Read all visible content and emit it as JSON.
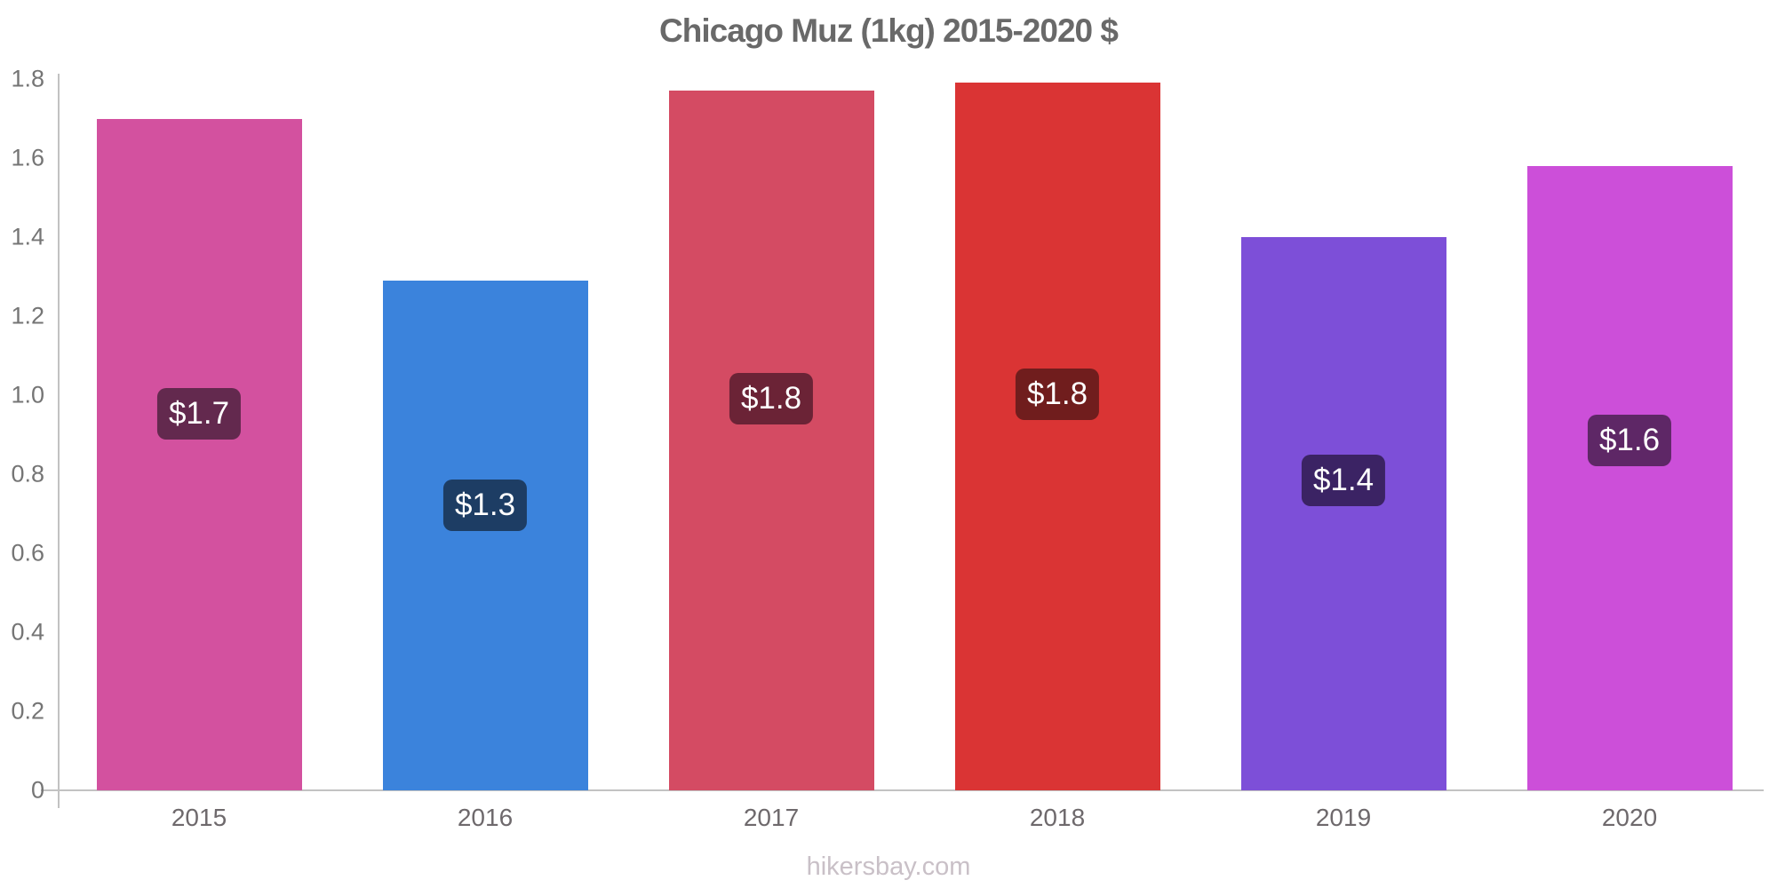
{
  "chart_data": {
    "type": "bar",
    "title": "Chicago Muz (1kg) 2015-2020 $",
    "source": "hikersbay.com",
    "categories": [
      "2015",
      "2016",
      "2017",
      "2018",
      "2019",
      "2020"
    ],
    "values": [
      1.7,
      1.29,
      1.77,
      1.79,
      1.4,
      1.58
    ],
    "value_labels": [
      "$1.7",
      "$1.3",
      "$1.8",
      "$1.8",
      "$1.4",
      "$1.6"
    ],
    "bar_colors": [
      "#d3519f",
      "#3b83dc",
      "#d44b63",
      "#da3434",
      "#7d4fd8",
      "#cc4fd9"
    ],
    "badge_colors": [
      "#63294e",
      "#1d3d64",
      "#6b2336",
      "#701d1d",
      "#3b2364",
      "#5e2766"
    ],
    "xlabel": "",
    "ylabel": "",
    "ylim": [
      0,
      1.8
    ],
    "yticks": [
      "0",
      "0.2",
      "0.4",
      "0.6",
      "0.8",
      "1.0",
      "1.2",
      "1.4",
      "1.6",
      "1.8"
    ],
    "grid": false,
    "legend": "none",
    "currency": "$"
  },
  "colors": {
    "axis": "#c2c2c2",
    "title_text": "#696969",
    "y_tick_text": "#757575",
    "x_tick_text": "#6e696c",
    "badge_text": "#ffffff",
    "watermark_text": "#c9c0c7"
  }
}
